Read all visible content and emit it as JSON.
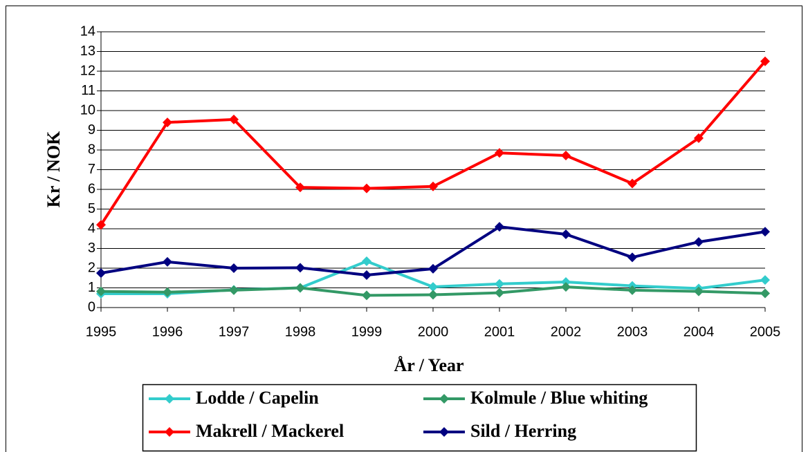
{
  "chart_data": {
    "type": "line",
    "x_label": "År / Year",
    "y_label": "Kr / NOK",
    "categories": [
      "1995",
      "1996",
      "1997",
      "1998",
      "1999",
      "2000",
      "2001",
      "2002",
      "2003",
      "2004",
      "2005"
    ],
    "series": [
      {
        "name": "Lodde / Capelin",
        "color": "#33cccc",
        "values": [
          0.7,
          0.7,
          0.9,
          1.0,
          2.35,
          1.05,
          1.2,
          1.3,
          1.1,
          0.97,
          1.4
        ]
      },
      {
        "name": "Kolmule / Blue whiting",
        "color": "#339966",
        "values": [
          0.82,
          0.78,
          0.88,
          1.0,
          0.62,
          0.65,
          0.75,
          1.05,
          0.88,
          0.82,
          0.72
        ]
      },
      {
        "name": "Makrell / Mackerel",
        "color": "#ff0000",
        "values": [
          4.2,
          9.4,
          9.55,
          6.1,
          6.05,
          6.15,
          7.85,
          7.72,
          6.3,
          8.6,
          12.5
        ]
      },
      {
        "name": "Sild / Herring",
        "color": "#000080",
        "values": [
          1.75,
          2.32,
          2.0,
          2.02,
          1.65,
          1.97,
          4.1,
          3.72,
          2.55,
          3.33,
          3.85
        ]
      }
    ],
    "ylim": [
      0,
      14
    ],
    "yticks": [
      0,
      1,
      2,
      3,
      4,
      5,
      6,
      7,
      8,
      9,
      10,
      11,
      12,
      13,
      14
    ],
    "grid": true
  }
}
